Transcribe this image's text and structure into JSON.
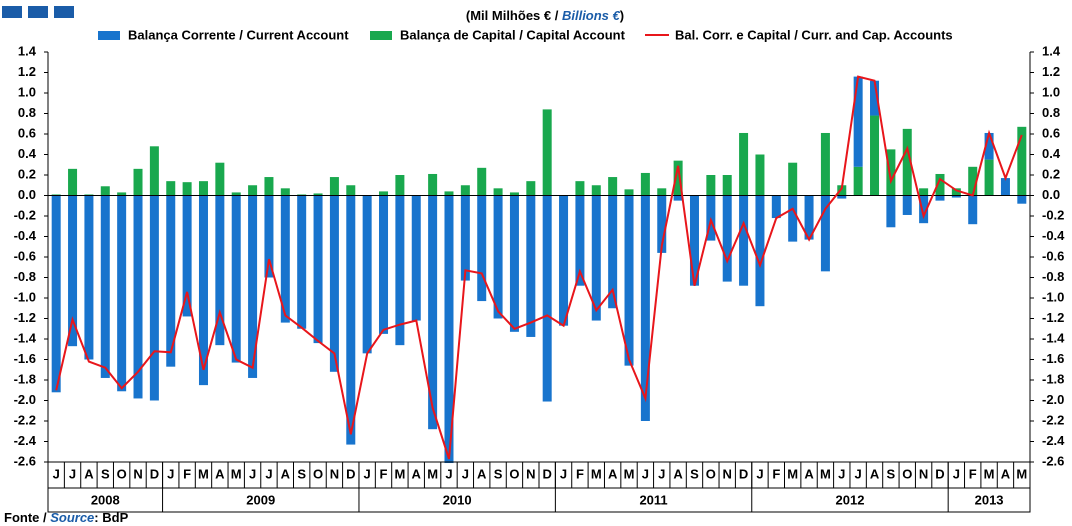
{
  "chart_data": {
    "type": "bar",
    "subtitle": [
      "(Mil Milhões € / ",
      "Billions €",
      ")"
    ],
    "source": [
      "Fonte / ",
      "Source",
      ": BdP"
    ],
    "categories": [
      "J",
      "J",
      "A",
      "S",
      "O",
      "N",
      "D",
      "J",
      "F",
      "M",
      "A",
      "M",
      "J",
      "J",
      "A",
      "S",
      "O",
      "N",
      "D",
      "J",
      "F",
      "M",
      "A",
      "M",
      "J",
      "J",
      "A",
      "S",
      "O",
      "N",
      "D",
      "J",
      "F",
      "M",
      "A",
      "M",
      "J",
      "J",
      "A",
      "S",
      "O",
      "N",
      "D",
      "J",
      "F",
      "M",
      "A",
      "M",
      "J",
      "J",
      "A",
      "S",
      "O",
      "N",
      "D",
      "J",
      "F",
      "M",
      "A",
      "M"
    ],
    "years": [
      "2008",
      "2009",
      "2010",
      "2011",
      "2012",
      "2013"
    ],
    "series": [
      {
        "name": "Balança Corrente / Current Account",
        "type": "bar",
        "color": "#1874cd",
        "values": [
          -1.92,
          -1.47,
          -1.6,
          -1.78,
          -1.91,
          -1.98,
          -2.0,
          -1.67,
          -1.18,
          -1.85,
          -1.46,
          -1.63,
          -1.78,
          -0.8,
          -1.24,
          -1.3,
          -1.44,
          -1.72,
          -2.43,
          -1.54,
          -1.35,
          -1.46,
          -1.22,
          -2.28,
          -2.61,
          -0.83,
          -1.03,
          -1.2,
          -1.33,
          -1.38,
          -2.01,
          -1.27,
          -0.88,
          -1.22,
          -1.1,
          -1.66,
          -2.2,
          -0.56,
          -0.05,
          -0.88,
          -0.44,
          -0.84,
          -0.88,
          -1.08,
          -0.22,
          -0.45,
          -0.43,
          -0.74,
          -0.03,
          0.88,
          0.34,
          -0.31,
          -0.19,
          -0.27,
          -0.05,
          -0.02,
          -0.28,
          0.26,
          0.17,
          -0.08
        ]
      },
      {
        "name": "Balança de Capital / Capital Account",
        "type": "bar",
        "color": "#19a84e",
        "values": [
          0.01,
          0.26,
          0.01,
          0.09,
          0.03,
          0.26,
          0.48,
          0.14,
          0.13,
          0.14,
          0.32,
          0.03,
          0.1,
          0.18,
          0.07,
          0.01,
          0.02,
          0.18,
          0.1,
          0.0,
          0.04,
          0.2,
          0.0,
          0.21,
          0.04,
          0.1,
          0.27,
          0.07,
          0.03,
          0.14,
          0.84,
          0.0,
          0.14,
          0.1,
          0.18,
          0.06,
          0.22,
          0.07,
          0.34,
          0.0,
          0.2,
          0.2,
          0.61,
          0.4,
          0.0,
          0.32,
          0.0,
          0.61,
          0.1,
          0.28,
          0.78,
          0.45,
          0.65,
          0.07,
          0.21,
          0.07,
          0.28,
          0.35,
          0.0,
          0.67
        ]
      },
      {
        "name": "Bal. Corr. e Capital / Curr. and Cap. Accounts",
        "type": "line",
        "color": "#e8161b",
        "values": [
          -1.9,
          -1.21,
          -1.62,
          -1.68,
          -1.88,
          -1.72,
          -1.52,
          -1.53,
          -0.94,
          -1.7,
          -1.14,
          -1.6,
          -1.68,
          -0.62,
          -1.17,
          -1.29,
          -1.42,
          -1.54,
          -2.33,
          -1.54,
          -1.31,
          -1.26,
          -1.22,
          -2.07,
          -2.57,
          -0.73,
          -0.76,
          -1.13,
          -1.3,
          -1.24,
          -1.17,
          -1.27,
          -0.74,
          -1.12,
          -0.92,
          -1.6,
          -1.98,
          -0.49,
          0.29,
          -0.88,
          -0.24,
          -0.64,
          -0.27,
          -0.68,
          -0.22,
          -0.13,
          -0.43,
          -0.13,
          0.07,
          1.16,
          1.12,
          0.14,
          0.46,
          -0.2,
          0.16,
          0.05,
          0.0,
          0.61,
          0.17,
          0.59
        ]
      }
    ],
    "ylim": [
      -2.6,
      1.4
    ],
    "yticks": [
      -2.6,
      -2.4,
      -2.2,
      {
        "value": -2.0,
        "label": "-2.0"
      },
      -1.8,
      -1.6,
      -1.4,
      -1.2,
      {
        "value": -1.0,
        "label": "-1.0"
      },
      -0.8,
      -0.6,
      -0.4,
      -0.2,
      {
        "value": 0,
        "label": "0.0"
      },
      0.2,
      0.4,
      0.6,
      0.8,
      {
        "value": 1.0,
        "label": "1.0"
      },
      1.2,
      1.4
    ]
  }
}
